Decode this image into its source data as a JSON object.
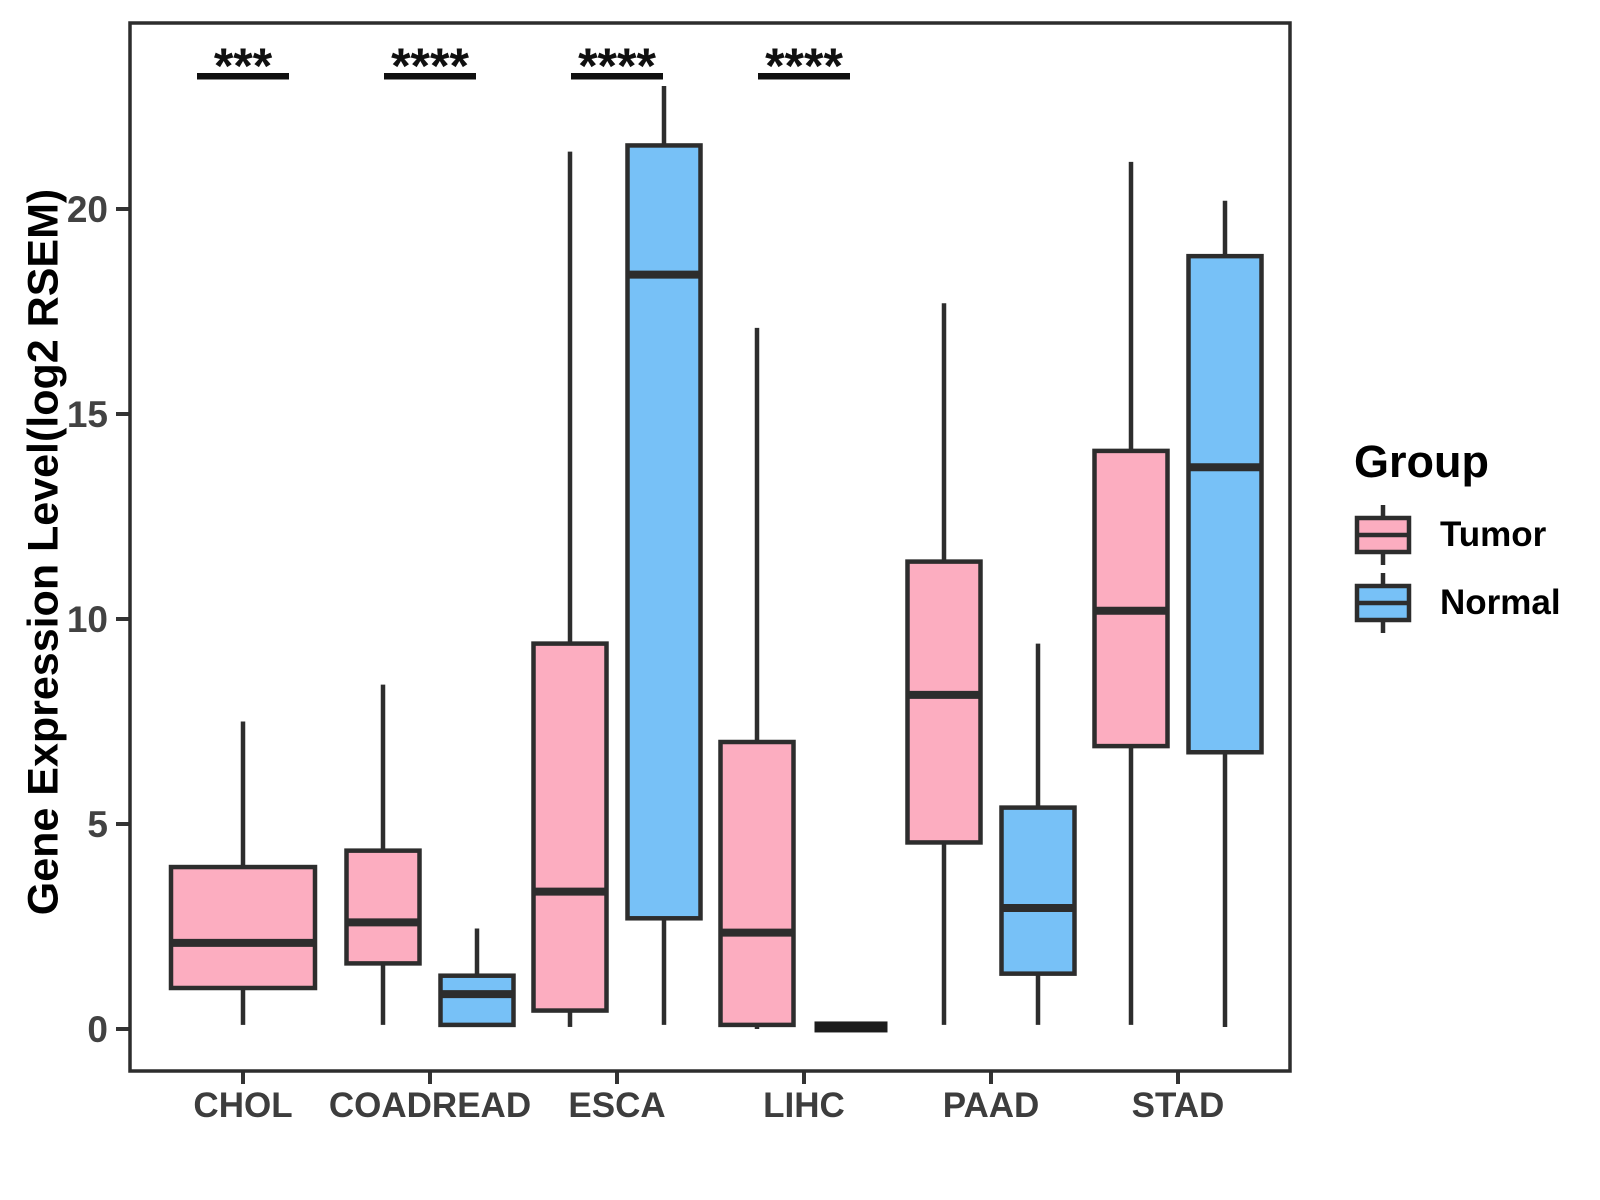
{
  "chart_data": {
    "type": "boxplot",
    "title": "",
    "xlabel": "",
    "ylabel": "Gene Expression Level(log2 RSEM)",
    "categories": [
      "CHOL",
      "COADREAD",
      "ESCA",
      "LIHC",
      "PAAD",
      "STAD"
    ],
    "groups": [
      "Tumor",
      "Normal"
    ],
    "colors": {
      "Tumor": "#FCADC0",
      "Normal": "#77C1F7"
    },
    "border_color": "#2D2D2D",
    "axis_text_color": "#424242",
    "ylim": [
      -1,
      24.5
    ],
    "yticks": [
      0,
      5,
      10,
      15,
      20
    ],
    "ytick_labels": [
      "0",
      "5",
      "10",
      "15",
      "20"
    ],
    "grid": "off",
    "legend": {
      "title": "Group",
      "entries": [
        "Tumor",
        "Normal"
      ],
      "position": "right"
    },
    "significance": [
      {
        "category": "CHOL",
        "label": "***"
      },
      {
        "category": "COADREAD",
        "label": "****"
      },
      {
        "category": "ESCA",
        "label": "****"
      },
      {
        "category": "LIHC",
        "label": "****"
      }
    ],
    "boxes": [
      {
        "category": "CHOL",
        "group": "Tumor",
        "low": 0.1,
        "q1": 1.0,
        "median": 2.1,
        "q3": 3.95,
        "high": 7.5,
        "wide": true
      },
      {
        "category": "COADREAD",
        "group": "Tumor",
        "low": 0.1,
        "q1": 1.6,
        "median": 2.6,
        "q3": 4.35,
        "high": 8.4
      },
      {
        "category": "COADREAD",
        "group": "Normal",
        "low": 0.05,
        "q1": 0.1,
        "median": 0.85,
        "q3": 1.3,
        "high": 2.45
      },
      {
        "category": "ESCA",
        "group": "Tumor",
        "low": 0.05,
        "q1": 0.45,
        "median": 3.35,
        "q3": 9.4,
        "high": 21.4
      },
      {
        "category": "ESCA",
        "group": "Normal",
        "low": 0.1,
        "q1": 2.7,
        "median": 18.4,
        "q3": 21.55,
        "high": 23.0
      },
      {
        "category": "LIHC",
        "group": "Tumor",
        "low": 0.0,
        "q1": 0.1,
        "median": 2.35,
        "q3": 7.0,
        "high": 17.1
      },
      {
        "category": "LIHC",
        "group": "Normal",
        "low": 0.0,
        "q1": 0.0,
        "median": 0.05,
        "q3": 0.1,
        "high": 0.1,
        "flat": true
      },
      {
        "category": "PAAD",
        "group": "Tumor",
        "low": 0.1,
        "q1": 4.55,
        "median": 8.15,
        "q3": 11.4,
        "high": 17.7
      },
      {
        "category": "PAAD",
        "group": "Normal",
        "low": 0.1,
        "q1": 1.35,
        "median": 2.95,
        "q3": 5.4,
        "high": 9.4
      },
      {
        "category": "STAD",
        "group": "Tumor",
        "low": 0.1,
        "q1": 6.9,
        "median": 10.2,
        "q3": 14.1,
        "high": 21.15
      },
      {
        "category": "STAD",
        "group": "Normal",
        "low": 0.05,
        "q1": 6.75,
        "median": 13.7,
        "q3": 18.85,
        "high": 20.2
      }
    ]
  }
}
